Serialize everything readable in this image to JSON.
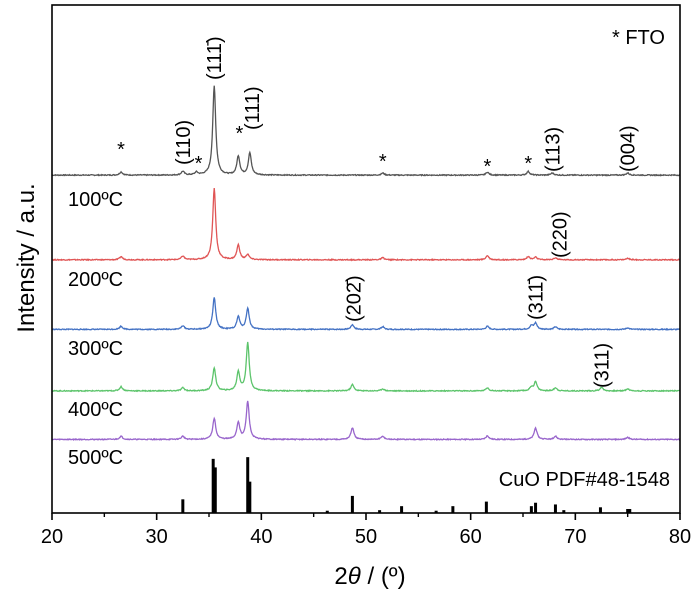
{
  "chart_data": {
    "type": "line",
    "xlabel_prefix": "2",
    "xlabel_theta": "θ",
    "xlabel_suffix": " / (º)",
    "ylabel": "Intensity / a.u.",
    "xlim": [
      20,
      80
    ],
    "xticks": [
      "20",
      "30",
      "40",
      "50",
      "60",
      "70",
      "80"
    ],
    "legend_text": "* FTO",
    "series": [
      {
        "name": "100ºC",
        "color": "#555555",
        "baseline": 0.75,
        "peaks": [
          [
            26.6,
            0.3
          ],
          [
            32.5,
            0.35
          ],
          [
            33.8,
            0.25
          ],
          [
            35.5,
            8.5
          ],
          [
            37.8,
            1.8
          ],
          [
            38.9,
            2.1
          ],
          [
            51.6,
            0.2
          ],
          [
            61.6,
            0.28
          ],
          [
            65.5,
            0.35
          ],
          [
            67.8,
            0.2
          ],
          [
            75.0,
            0.2
          ]
        ]
      },
      {
        "name": "200ºC",
        "color": "#E05555",
        "baseline": 0.4,
        "peaks": [
          [
            26.6,
            0.3
          ],
          [
            32.5,
            0.35
          ],
          [
            35.5,
            6.8
          ],
          [
            37.8,
            1.4
          ],
          [
            38.7,
            0.5
          ],
          [
            51.6,
            0.2
          ],
          [
            61.6,
            0.4
          ],
          [
            65.5,
            0.3
          ],
          [
            66.2,
            0.25
          ],
          [
            68.1,
            0.2
          ],
          [
            75.0,
            0.15
          ]
        ]
      },
      {
        "name": "300ºC",
        "color": "#4472C4",
        "baseline": 0.25,
        "peaks": [
          [
            26.6,
            0.3
          ],
          [
            32.5,
            0.35
          ],
          [
            35.5,
            3.0
          ],
          [
            37.8,
            1.2
          ],
          [
            38.7,
            2.0
          ],
          [
            48.7,
            0.45
          ],
          [
            51.6,
            0.25
          ],
          [
            61.6,
            0.3
          ],
          [
            65.8,
            0.35
          ],
          [
            66.2,
            0.6
          ],
          [
            68.1,
            0.25
          ],
          [
            75.0,
            0.15
          ]
        ]
      },
      {
        "name": "400ºC",
        "color": "#5CC46B",
        "baseline": 0.2,
        "peaks": [
          [
            26.6,
            0.4
          ],
          [
            32.5,
            0.3
          ],
          [
            35.5,
            2.2
          ],
          [
            37.8,
            1.8
          ],
          [
            38.7,
            4.6
          ],
          [
            48.7,
            0.6
          ],
          [
            51.6,
            0.2
          ],
          [
            61.6,
            0.3
          ],
          [
            65.8,
            0.35
          ],
          [
            66.2,
            0.85
          ],
          [
            68.1,
            0.3
          ],
          [
            72.5,
            0.35
          ],
          [
            75.0,
            0.2
          ]
        ]
      },
      {
        "name": "500ºC",
        "color": "#9966CC",
        "baseline": 0.15,
        "peaks": [
          [
            26.6,
            0.3
          ],
          [
            32.5,
            0.3
          ],
          [
            35.5,
            2.0
          ],
          [
            37.8,
            1.6
          ],
          [
            38.7,
            3.6
          ],
          [
            48.7,
            1.1
          ],
          [
            51.6,
            0.3
          ],
          [
            61.6,
            0.35
          ],
          [
            66.2,
            1.1
          ],
          [
            68.1,
            0.3
          ],
          [
            75.0,
            0.2
          ]
        ]
      }
    ],
    "reference": {
      "name": "CuO PDF#48-1548",
      "lines": [
        [
          32.5,
          0.24
        ],
        [
          35.4,
          0.95
        ],
        [
          35.6,
          0.8
        ],
        [
          38.7,
          0.98
        ],
        [
          38.9,
          0.55
        ],
        [
          46.3,
          0.04
        ],
        [
          48.7,
          0.3
        ],
        [
          51.3,
          0.05
        ],
        [
          53.4,
          0.12
        ],
        [
          56.7,
          0.04
        ],
        [
          58.3,
          0.12
        ],
        [
          61.5,
          0.2
        ],
        [
          65.8,
          0.12
        ],
        [
          66.2,
          0.18
        ],
        [
          68.1,
          0.15
        ],
        [
          68.9,
          0.05
        ],
        [
          72.4,
          0.1
        ],
        [
          75.0,
          0.07
        ],
        [
          75.2,
          0.07
        ]
      ]
    },
    "annotations": [
      {
        "text": "*",
        "x": 26.6,
        "row": 0
      },
      {
        "text": "*",
        "x": 34.0,
        "row": 0
      },
      {
        "text": "*",
        "x": 37.9,
        "row": 0
      },
      {
        "text": "*",
        "x": 51.6,
        "row": 0
      },
      {
        "text": "*",
        "x": 61.6,
        "row": 0
      },
      {
        "text": "*",
        "x": 65.5,
        "row": 0
      },
      {
        "text": "(110)",
        "x": 32.5,
        "row": 0,
        "rotated": true
      },
      {
        "text": "(111̄)",
        "x": 35.5,
        "row": 0,
        "rotated": true
      },
      {
        "text": "(111)",
        "x": 39.1,
        "row": 0,
        "rotated": true
      },
      {
        "text": "(113)",
        "x": 67.8,
        "row": 0,
        "rotated": true
      },
      {
        "text": "(004)",
        "x": 75.0,
        "row": 0,
        "rotated": true
      },
      {
        "text": "(220)",
        "x": 68.5,
        "row": 1,
        "rotated": true
      },
      {
        "text": "(202̄)",
        "x": 48.8,
        "row": 2,
        "rotated": true
      },
      {
        "text": "(311̄)",
        "x": 66.2,
        "row": 2,
        "rotated": true
      },
      {
        "text": "(311)",
        "x": 72.5,
        "row": 3,
        "rotated": true
      }
    ]
  }
}
